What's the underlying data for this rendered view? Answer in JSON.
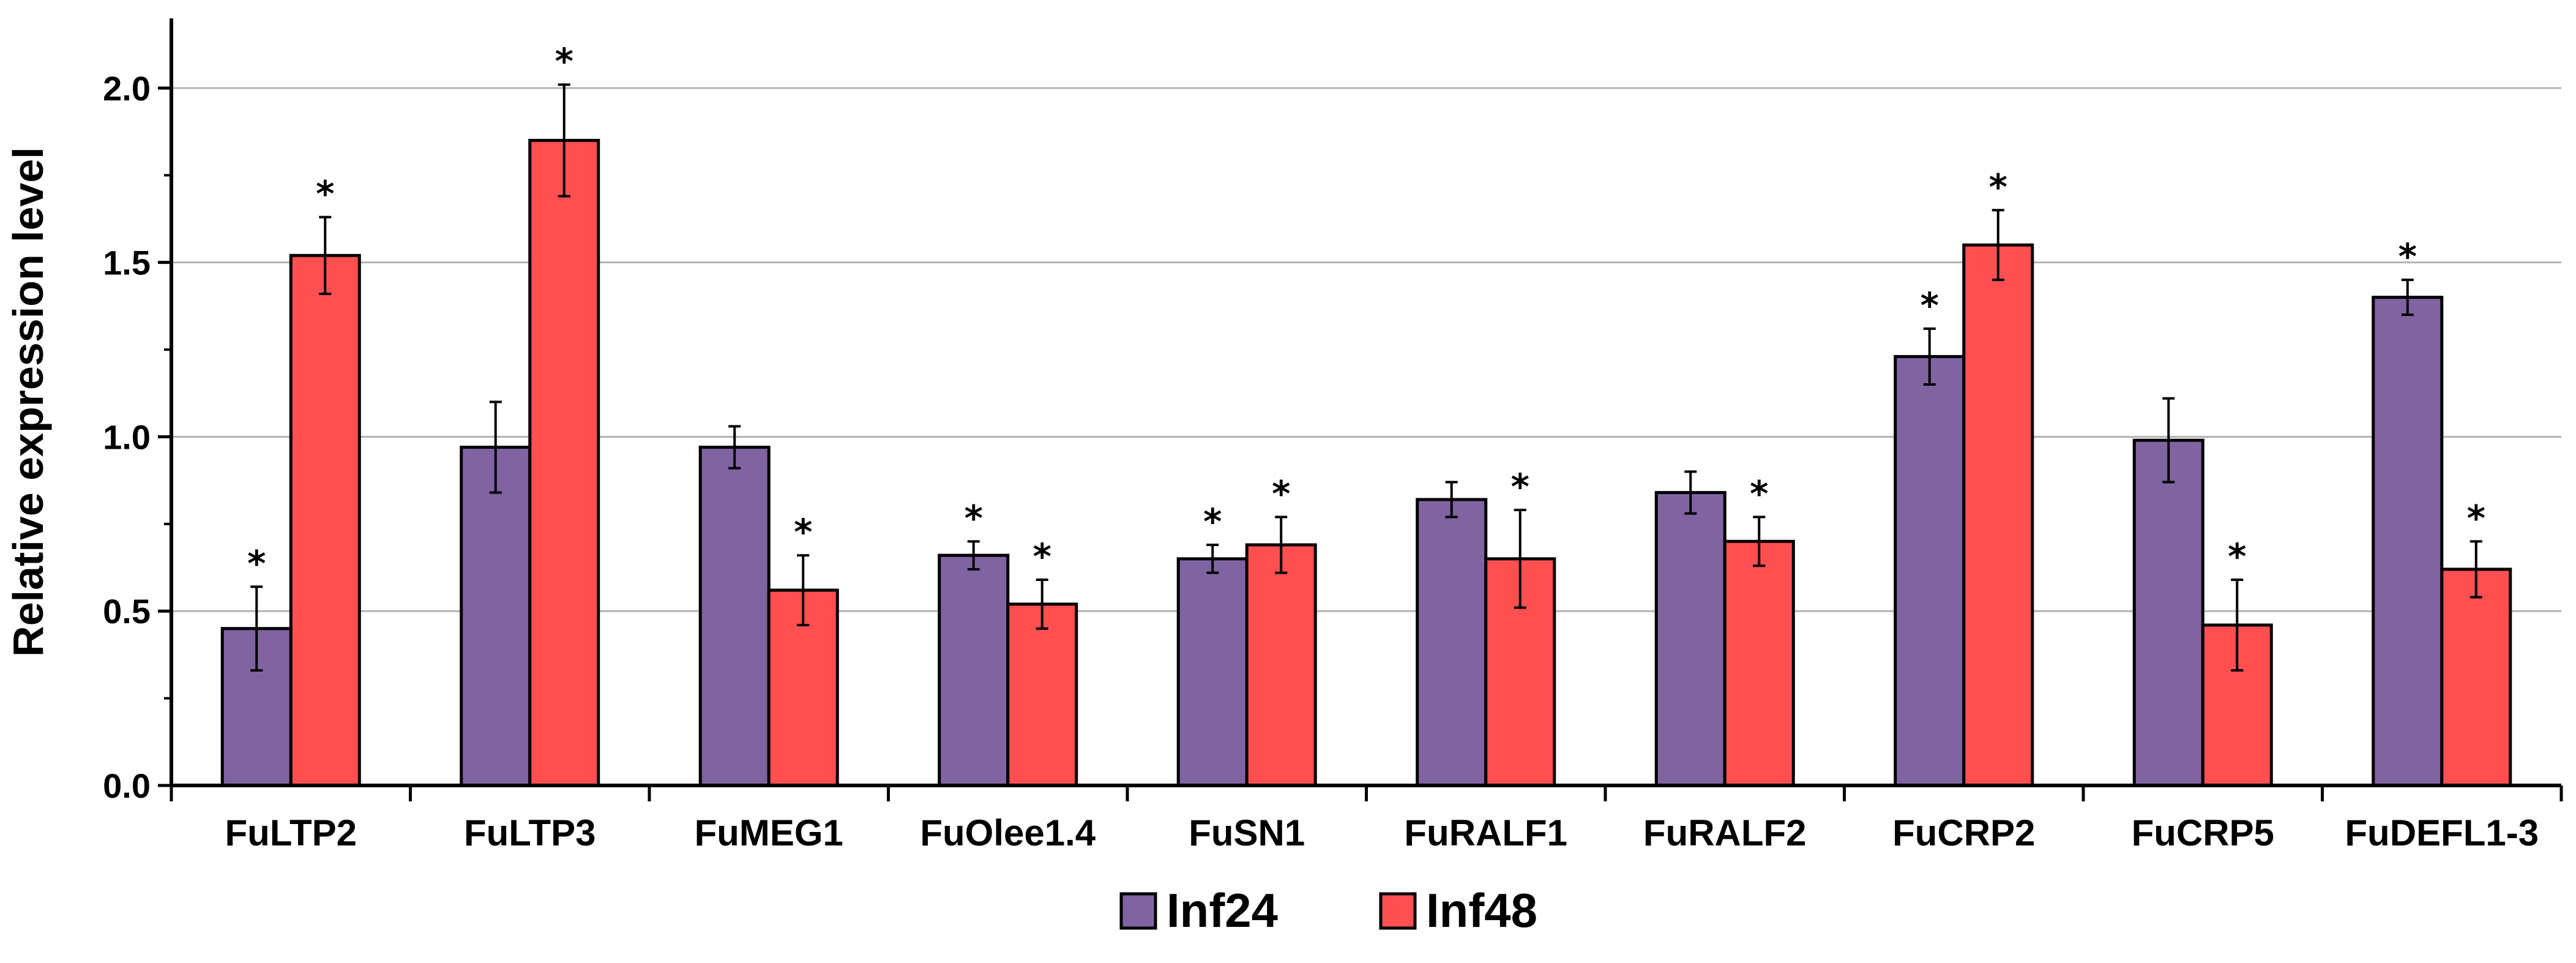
{
  "chart_data": {
    "type": "bar",
    "title": "",
    "xlabel": "",
    "ylabel": "Relative expression level",
    "ylim": [
      0,
      2.2
    ],
    "yticks": [
      0.0,
      0.5,
      1.0,
      1.5,
      2.0
    ],
    "ytick_labels": [
      "0.0",
      "0.5",
      "1.0",
      "1.5",
      "2.0"
    ],
    "grid": "horizontal",
    "legend_position": "bottom-center",
    "categories": [
      "FuLTP2",
      "FuLTP3",
      "FuMEG1",
      "FuOlee1.4",
      "FuSN1",
      "FuRALF1",
      "FuRALF2",
      "FuCRP2",
      "FuCRP5",
      "FuDEFL1-3"
    ],
    "significance_marker": "*",
    "series": [
      {
        "name": "Inf24",
        "color": "#8064a2",
        "values": [
          0.45,
          0.97,
          0.97,
          0.66,
          0.65,
          0.82,
          0.84,
          1.23,
          0.99,
          1.4
        ],
        "errors": [
          0.12,
          0.13,
          0.06,
          0.04,
          0.04,
          0.05,
          0.06,
          0.08,
          0.12,
          0.05
        ],
        "significant": [
          true,
          false,
          false,
          true,
          true,
          false,
          false,
          true,
          false,
          true
        ]
      },
      {
        "name": "Inf48",
        "color": "#ff4f51",
        "values": [
          1.52,
          1.85,
          0.56,
          0.52,
          0.69,
          0.65,
          0.7,
          1.55,
          0.46,
          0.62
        ],
        "errors": [
          0.11,
          0.16,
          0.1,
          0.07,
          0.08,
          0.14,
          0.07,
          0.1,
          0.13,
          0.08
        ],
        "significant": [
          true,
          true,
          true,
          true,
          true,
          true,
          true,
          true,
          true,
          true
        ]
      }
    ]
  }
}
